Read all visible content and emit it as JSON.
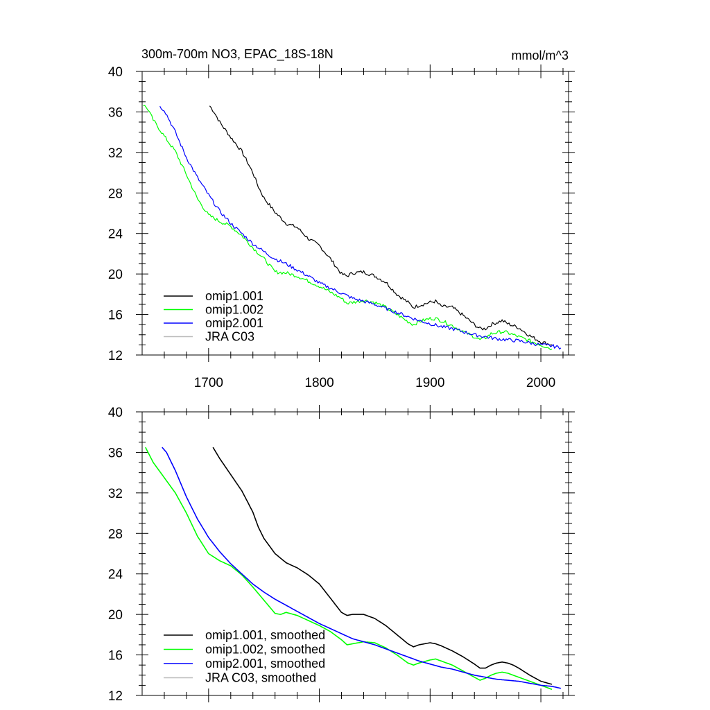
{
  "title_left": "300m-700m NO3, EPAC_18S-18N",
  "title_right": "mmol/m^3",
  "chart_data": [
    {
      "type": "line",
      "title": "300m-700m NO3, EPAC_18S-18N",
      "units": "mmol/m^3",
      "xlim": [
        1640,
        2025
      ],
      "ylim": [
        12,
        40
      ],
      "xticks": [
        1700,
        1800,
        1900,
        2000
      ],
      "xtick_labels": [
        "1700",
        "1800",
        "1900",
        "2000"
      ],
      "yticks": [
        12,
        16,
        20,
        24,
        28,
        32,
        36,
        40
      ],
      "ytick_labels": [
        "12",
        "16",
        "20",
        "24",
        "28",
        "32",
        "36",
        "40"
      ],
      "legend": "bottom-left",
      "series": [
        {
          "name": "omip1.001",
          "color": "#000000",
          "noisy": true,
          "points": [
            [
              1701,
              36.6
            ],
            [
              1705,
              36.0
            ],
            [
              1710,
              35.0
            ],
            [
              1720,
              33.5
            ],
            [
              1730,
              32.1
            ],
            [
              1740,
              30.0
            ],
            [
              1745,
              28.6
            ],
            [
              1750,
              27.5
            ],
            [
              1760,
              26.1
            ],
            [
              1770,
              25.0
            ],
            [
              1780,
              24.6
            ],
            [
              1790,
              23.5
            ],
            [
              1800,
              22.8
            ],
            [
              1810,
              21.5
            ],
            [
              1820,
              20.0
            ],
            [
              1825,
              19.8
            ],
            [
              1830,
              20.1
            ],
            [
              1840,
              20.2
            ],
            [
              1850,
              19.8
            ],
            [
              1860,
              19.2
            ],
            [
              1870,
              18.0
            ],
            [
              1880,
              17.2
            ],
            [
              1885,
              16.7
            ],
            [
              1890,
              16.9
            ],
            [
              1900,
              17.2
            ],
            [
              1905,
              17.3
            ],
            [
              1910,
              16.8
            ],
            [
              1920,
              16.7
            ],
            [
              1930,
              15.9
            ],
            [
              1940,
              15.0
            ],
            [
              1945,
              14.6
            ],
            [
              1950,
              14.6
            ],
            [
              1955,
              15.0
            ],
            [
              1960,
              15.2
            ],
            [
              1965,
              15.4
            ],
            [
              1970,
              15.1
            ],
            [
              1980,
              14.7
            ],
            [
              1990,
              13.9
            ],
            [
              2000,
              13.3
            ],
            [
              2010,
              13.0
            ]
          ]
        },
        {
          "name": "omip1.002",
          "color": "#00ff00",
          "noisy": true,
          "points": [
            [
              1641,
              36.7
            ],
            [
              1645,
              36.3
            ],
            [
              1650,
              35.2
            ],
            [
              1660,
              33.6
            ],
            [
              1670,
              32.1
            ],
            [
              1680,
              29.8
            ],
            [
              1690,
              27.4
            ],
            [
              1700,
              25.8
            ],
            [
              1710,
              25.2
            ],
            [
              1720,
              24.7
            ],
            [
              1730,
              23.8
            ],
            [
              1740,
              22.6
            ],
            [
              1750,
              21.5
            ],
            [
              1760,
              20.2
            ],
            [
              1770,
              20.1
            ],
            [
              1780,
              19.8
            ],
            [
              1790,
              19.3
            ],
            [
              1800,
              18.8
            ],
            [
              1810,
              18.2
            ],
            [
              1820,
              17.6
            ],
            [
              1825,
              17.1
            ],
            [
              1830,
              17.2
            ],
            [
              1840,
              17.4
            ],
            [
              1850,
              17.2
            ],
            [
              1860,
              16.7
            ],
            [
              1870,
              16.0
            ],
            [
              1880,
              15.3
            ],
            [
              1885,
              15.0
            ],
            [
              1890,
              15.3
            ],
            [
              1900,
              15.6
            ],
            [
              1905,
              15.6
            ],
            [
              1910,
              15.4
            ],
            [
              1920,
              14.9
            ],
            [
              1930,
              14.3
            ],
            [
              1940,
              13.8
            ],
            [
              1945,
              13.5
            ],
            [
              1950,
              13.7
            ],
            [
              1955,
              14.1
            ],
            [
              1965,
              14.3
            ],
            [
              1970,
              14.2
            ],
            [
              1980,
              13.8
            ],
            [
              1990,
              13.4
            ],
            [
              2000,
              13.0
            ],
            [
              2010,
              12.6
            ]
          ]
        },
        {
          "name": "omip2.001",
          "color": "#0000ff",
          "noisy": true,
          "points": [
            [
              1656,
              36.5
            ],
            [
              1660,
              36.2
            ],
            [
              1670,
              34.0
            ],
            [
              1680,
              31.5
            ],
            [
              1690,
              29.5
            ],
            [
              1700,
              27.8
            ],
            [
              1710,
              26.2
            ],
            [
              1720,
              25.0
            ],
            [
              1730,
              24.0
            ],
            [
              1740,
              23.0
            ],
            [
              1750,
              22.2
            ],
            [
              1760,
              21.5
            ],
            [
              1770,
              21.0
            ],
            [
              1780,
              20.4
            ],
            [
              1790,
              19.8
            ],
            [
              1800,
              19.1
            ],
            [
              1810,
              18.6
            ],
            [
              1820,
              18.1
            ],
            [
              1830,
              17.6
            ],
            [
              1840,
              17.3
            ],
            [
              1850,
              17.0
            ],
            [
              1860,
              16.6
            ],
            [
              1870,
              16.2
            ],
            [
              1880,
              15.8
            ],
            [
              1890,
              15.4
            ],
            [
              1900,
              15.1
            ],
            [
              1910,
              14.8
            ],
            [
              1920,
              14.6
            ],
            [
              1930,
              14.3
            ],
            [
              1940,
              14.0
            ],
            [
              1950,
              13.8
            ],
            [
              1960,
              13.6
            ],
            [
              1970,
              13.5
            ],
            [
              1980,
              13.4
            ],
            [
              1990,
              13.2
            ],
            [
              2000,
              13.0
            ],
            [
              2010,
              12.9
            ],
            [
              2018,
              12.7
            ]
          ]
        },
        {
          "name": "JRA C03",
          "color": "#bbbbbb",
          "noisy": false,
          "points": []
        }
      ]
    },
    {
      "type": "line",
      "xlim": [
        1640,
        2025
      ],
      "ylim": [
        12,
        40
      ],
      "xticks": [
        1700,
        1800,
        1900,
        2000
      ],
      "yticks": [
        12,
        16,
        20,
        24,
        28,
        32,
        36,
        40
      ],
      "ytick_labels": [
        "12",
        "16",
        "20",
        "24",
        "28",
        "32",
        "36",
        "40"
      ],
      "legend": "bottom-left",
      "series": [
        {
          "name": "omip1.001, smoothed",
          "color": "#000000",
          "noisy": false,
          "points": [
            [
              1704,
              36.5
            ],
            [
              1710,
              35.4
            ],
            [
              1720,
              33.8
            ],
            [
              1730,
              32.2
            ],
            [
              1740,
              30.1
            ],
            [
              1745,
              28.6
            ],
            [
              1750,
              27.5
            ],
            [
              1760,
              26.0
            ],
            [
              1770,
              25.1
            ],
            [
              1780,
              24.6
            ],
            [
              1790,
              23.9
            ],
            [
              1800,
              23.0
            ],
            [
              1810,
              21.6
            ],
            [
              1820,
              20.2
            ],
            [
              1825,
              19.9
            ],
            [
              1830,
              20.0
            ],
            [
              1840,
              20.0
            ],
            [
              1850,
              19.6
            ],
            [
              1860,
              18.9
            ],
            [
              1870,
              18.0
            ],
            [
              1880,
              17.1
            ],
            [
              1885,
              16.8
            ],
            [
              1890,
              17.0
            ],
            [
              1900,
              17.2
            ],
            [
              1905,
              17.1
            ],
            [
              1910,
              16.9
            ],
            [
              1920,
              16.4
            ],
            [
              1930,
              15.8
            ],
            [
              1940,
              15.1
            ],
            [
              1945,
              14.7
            ],
            [
              1950,
              14.7
            ],
            [
              1955,
              15.0
            ],
            [
              1960,
              15.2
            ],
            [
              1965,
              15.3
            ],
            [
              1970,
              15.2
            ],
            [
              1975,
              15.0
            ],
            [
              1980,
              14.7
            ],
            [
              1990,
              14.0
            ],
            [
              2000,
              13.4
            ],
            [
              2010,
              13.1
            ]
          ]
        },
        {
          "name": "omip1.002, smoothed",
          "color": "#00ff00",
          "noisy": false,
          "points": [
            [
              1643,
              36.5
            ],
            [
              1650,
              35.0
            ],
            [
              1660,
              33.5
            ],
            [
              1670,
              32.0
            ],
            [
              1680,
              30.0
            ],
            [
              1690,
              27.7
            ],
            [
              1700,
              26.0
            ],
            [
              1710,
              25.3
            ],
            [
              1720,
              24.8
            ],
            [
              1730,
              23.9
            ],
            [
              1740,
              22.7
            ],
            [
              1750,
              21.4
            ],
            [
              1760,
              20.1
            ],
            [
              1765,
              20.0
            ],
            [
              1770,
              20.2
            ],
            [
              1780,
              19.9
            ],
            [
              1790,
              19.4
            ],
            [
              1800,
              18.9
            ],
            [
              1810,
              18.3
            ],
            [
              1820,
              17.5
            ],
            [
              1825,
              17.0
            ],
            [
              1830,
              17.1
            ],
            [
              1840,
              17.3
            ],
            [
              1850,
              17.2
            ],
            [
              1860,
              16.7
            ],
            [
              1870,
              16.0
            ],
            [
              1880,
              15.2
            ],
            [
              1885,
              15.0
            ],
            [
              1890,
              15.2
            ],
            [
              1900,
              15.5
            ],
            [
              1905,
              15.6
            ],
            [
              1910,
              15.4
            ],
            [
              1920,
              15.0
            ],
            [
              1930,
              14.4
            ],
            [
              1940,
              13.8
            ],
            [
              1945,
              13.5
            ],
            [
              1950,
              13.7
            ],
            [
              1955,
              14.0
            ],
            [
              1960,
              14.2
            ],
            [
              1965,
              14.3
            ],
            [
              1970,
              14.2
            ],
            [
              1980,
              13.8
            ],
            [
              1990,
              13.4
            ],
            [
              2000,
              13.0
            ],
            [
              2010,
              12.6
            ]
          ]
        },
        {
          "name": "omip2.001, smoothed",
          "color": "#0000ff",
          "noisy": false,
          "points": [
            [
              1658,
              36.5
            ],
            [
              1662,
              36.0
            ],
            [
              1670,
              34.2
            ],
            [
              1680,
              31.6
            ],
            [
              1690,
              29.4
            ],
            [
              1700,
              27.6
            ],
            [
              1710,
              26.2
            ],
            [
              1720,
              25.0
            ],
            [
              1730,
              24.0
            ],
            [
              1740,
              23.0
            ],
            [
              1750,
              22.2
            ],
            [
              1760,
              21.5
            ],
            [
              1770,
              20.9
            ],
            [
              1780,
              20.3
            ],
            [
              1790,
              19.7
            ],
            [
              1800,
              19.1
            ],
            [
              1810,
              18.6
            ],
            [
              1820,
              18.1
            ],
            [
              1830,
              17.6
            ],
            [
              1840,
              17.3
            ],
            [
              1850,
              17.0
            ],
            [
              1860,
              16.6
            ],
            [
              1870,
              16.2
            ],
            [
              1880,
              15.8
            ],
            [
              1890,
              15.4
            ],
            [
              1900,
              15.1
            ],
            [
              1910,
              14.8
            ],
            [
              1920,
              14.6
            ],
            [
              1930,
              14.3
            ],
            [
              1940,
              14.0
            ],
            [
              1950,
              13.8
            ],
            [
              1960,
              13.6
            ],
            [
              1970,
              13.5
            ],
            [
              1980,
              13.4
            ],
            [
              1990,
              13.2
            ],
            [
              2000,
              13.0
            ],
            [
              2010,
              12.9
            ],
            [
              2018,
              12.7
            ]
          ]
        },
        {
          "name": "JRA C03, smoothed",
          "color": "#bbbbbb",
          "noisy": false,
          "points": []
        }
      ]
    }
  ]
}
